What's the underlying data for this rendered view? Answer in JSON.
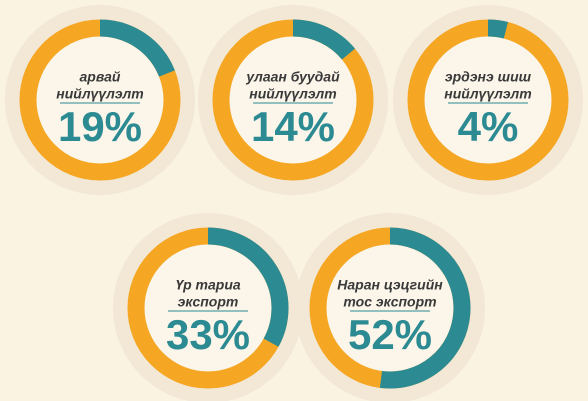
{
  "chart_data": [
    {
      "type": "donut",
      "label_lines": [
        "арвай",
        "нийлүүлэлт"
      ],
      "values": [
        19
      ],
      "value_labels": [
        "19%"
      ],
      "color": "#2b8a92",
      "track_color": "#f5a623"
    },
    {
      "type": "donut",
      "label_lines": [
        "улаан буудай",
        "нийлүүлэлт"
      ],
      "values": [
        14
      ],
      "value_labels": [
        "14%"
      ],
      "color": "#2b8a92",
      "track_color": "#f5a623"
    },
    {
      "type": "donut",
      "label_lines": [
        "эрдэнэ шиш",
        "нийлүүлэлт"
      ],
      "values": [
        4
      ],
      "value_labels": [
        "4%"
      ],
      "color": "#2b8a92",
      "track_color": "#f5a623"
    },
    {
      "type": "donut",
      "label_lines": [
        "Үр тариа",
        "экспорт"
      ],
      "values": [
        33
      ],
      "value_labels": [
        "33%"
      ],
      "color": "#2b8a92",
      "track_color": "#f5a623"
    },
    {
      "type": "donut",
      "label_lines": [
        "Наран цэцгийн",
        "тос экспорт"
      ],
      "values": [
        52
      ],
      "value_labels": [
        "52%"
      ],
      "color": "#2b8a92",
      "track_color": "#f5a623"
    }
  ]
}
